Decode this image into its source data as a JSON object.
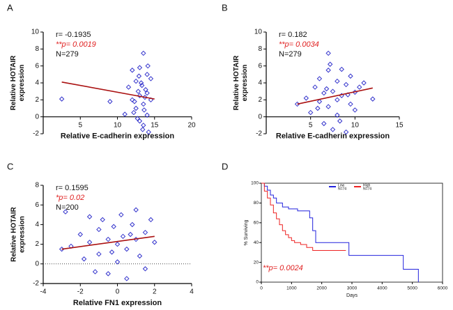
{
  "chart_data": [
    {
      "type": "scatter",
      "label": "A",
      "xlabel": "Relative E-cadherin expression",
      "ylabel": "Relative HOTAIR expression",
      "annotations": [
        "r= -0.1935",
        "**p= 0.0019",
        "N=279"
      ],
      "xlim": [
        0,
        20
      ],
      "xticks": [
        5,
        10,
        15,
        20
      ],
      "ylim": [
        -2,
        10
      ],
      "yticks": [
        -2,
        0,
        2,
        4,
        6,
        8,
        10
      ],
      "xaxis_at_zero": true,
      "color": "#3333cc",
      "fit_color": "#aa1111",
      "x": [
        2.5,
        9,
        11.5,
        12,
        12,
        12.2,
        12.5,
        12.5,
        12.8,
        13,
        13,
        13,
        13.2,
        13.5,
        13.5,
        13.5,
        13.8,
        14,
        14,
        14,
        14.2,
        14.5,
        14.5,
        12.3,
        12.7,
        13.3,
        13.7,
        14.1,
        13.6,
        11,
        12.9,
        13.4
      ],
      "values": [
        2.1,
        1.8,
        3.5,
        5.5,
        2,
        0.5,
        4.2,
        1,
        3,
        5.8,
        2.5,
        -0.5,
        4,
        7.5,
        1.5,
        -1,
        3.2,
        5,
        2.8,
        0.2,
        -1.8,
        4.5,
        2,
        1.8,
        -0.2,
        3.7,
        2.3,
        6,
        0.8,
        0.3,
        4.8,
        -1.5
      ],
      "fit": {
        "x": [
          2.5,
          15
        ],
        "y": [
          4.1,
          2.1
        ]
      }
    },
    {
      "type": "scatter",
      "label": "B",
      "xlabel": "Relative E-cadherin expression",
      "ylabel": "Relative HOTAIR expression",
      "annotations": [
        "r= 0.182",
        "**p= 0.0034",
        "N=279"
      ],
      "xlim": [
        0,
        15
      ],
      "xticks": [
        5,
        10,
        15
      ],
      "ylim": [
        -2,
        10
      ],
      "yticks": [
        -2,
        0,
        2,
        4,
        6,
        8,
        10
      ],
      "xaxis_at_zero": true,
      "color": "#3333cc",
      "fit_color": "#aa1111",
      "x": [
        3.5,
        4.5,
        5,
        5.5,
        6,
        6,
        6.5,
        6.5,
        7,
        7,
        7,
        7.5,
        7.5,
        8,
        8,
        8,
        8.5,
        8.5,
        9,
        9,
        9.5,
        9.5,
        10,
        10,
        10.5,
        11,
        12,
        7.2,
        6.8,
        8.3,
        5.8,
        9.2
      ],
      "values": [
        1.5,
        2.2,
        0.5,
        3.5,
        1.8,
        4.5,
        -0.8,
        2.8,
        5.5,
        1.2,
        7.5,
        3,
        -1.5,
        4.2,
        2,
        0.2,
        5.6,
        2.5,
        3.8,
        -1.8,
        1.5,
        4.8,
        2.9,
        0.8,
        3.5,
        4,
        2.1,
        6.2,
        3.3,
        -0.5,
        1.0,
        2.6
      ],
      "fit": {
        "x": [
          3.5,
          12
        ],
        "y": [
          1.5,
          3.4
        ]
      }
    },
    {
      "type": "scatter",
      "label": "C",
      "xlabel": "Relative FN1 expression",
      "ylabel": "Relative HOTAIR expression",
      "annotations": [
        "r= 0.1595",
        "*p= 0.02",
        "N=200"
      ],
      "xlim": [
        -4,
        4
      ],
      "xticks": [
        -4,
        -2,
        0,
        2,
        4
      ],
      "ylim": [
        -2,
        8
      ],
      "yticks": [
        -2,
        0,
        2,
        4,
        6,
        8
      ],
      "xaxis_at_zero": false,
      "zero_line": "dotted",
      "color": "#3333cc",
      "fit_color": "#aa1111",
      "x": [
        -3,
        -2.8,
        -2.5,
        -2,
        -1.8,
        -1.5,
        -1.5,
        -1.2,
        -1,
        -1,
        -0.8,
        -0.5,
        -0.5,
        -0.2,
        0,
        0,
        0.2,
        0.3,
        0.5,
        0.5,
        0.8,
        1,
        1,
        1.2,
        1.5,
        1.5,
        1.8,
        2,
        -0.3,
        0.7
      ],
      "values": [
        1.5,
        5.3,
        1.8,
        3,
        0.5,
        4.8,
        2.2,
        -0.8,
        3.5,
        1,
        4.5,
        2.5,
        -1,
        3.8,
        2,
        0.2,
        5,
        2.8,
        1.5,
        -1.5,
        4,
        5.5,
        2.5,
        0.8,
        3.2,
        -0.5,
        4.5,
        2.2,
        1.2,
        3
      ],
      "fit": {
        "x": [
          -3,
          2
        ],
        "y": [
          1.5,
          2.8
        ]
      }
    },
    {
      "type": "step",
      "label": "D",
      "xlabel": "Days",
      "ylabel": "% Surviving",
      "annotations": [
        "**p= 0.0024"
      ],
      "xlim": [
        0,
        6000
      ],
      "xticks": [
        0,
        1000,
        2000,
        3000,
        4000,
        5000,
        6000
      ],
      "ylim": [
        0,
        100
      ],
      "yticks": [
        0,
        20,
        40,
        60,
        80,
        100
      ],
      "series": [
        {
          "name": "Low",
          "note": "N=74",
          "color": "#2222dd",
          "x": [
            0,
            100,
            200,
            300,
            400,
            500,
            700,
            900,
            1000,
            1200,
            1500,
            1600,
            1700,
            1800,
            2900,
            4700,
            5200
          ],
          "values": [
            100,
            97,
            93,
            88,
            85,
            80,
            76,
            74,
            74,
            72,
            72,
            65,
            52,
            40,
            27,
            13,
            0
          ]
        },
        {
          "name": "High",
          "note": "N=74",
          "color": "#ee2222",
          "x": [
            0,
            100,
            200,
            300,
            400,
            500,
            600,
            700,
            800,
            900,
            1000,
            1100,
            1300,
            1500,
            1700,
            2000,
            2800
          ],
          "values": [
            100,
            92,
            85,
            78,
            70,
            64,
            58,
            52,
            48,
            45,
            42,
            40,
            38,
            35,
            32,
            32,
            32
          ]
        }
      ]
    }
  ]
}
